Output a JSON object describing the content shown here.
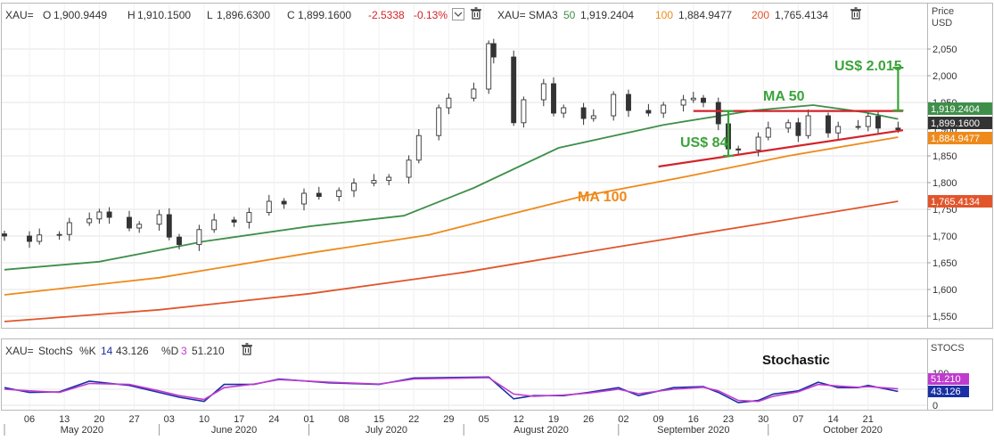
{
  "price_header": {
    "symbol": "XAU=",
    "open_label": "O",
    "open": "1,900.9449",
    "high_label": "H",
    "high": "1,910.1500",
    "low_label": "L",
    "low": "1,896.6300",
    "close_label": "C",
    "close": "1,899.1600",
    "change": "-2.5338",
    "change_pct": "-0.13%",
    "sma_symbol": "XAU=",
    "sma_name": "SMA3",
    "sma1_period": "50",
    "sma1_value": "1,919.2404",
    "sma2_period": "100",
    "sma2_value": "1,884.9477",
    "sma3_period": "200",
    "sma3_value": "1,765.4134"
  },
  "stoch_header": {
    "symbol": "XAU=",
    "name": "StochS",
    "k_label": "%K",
    "k_period": "14",
    "k_value": "43.126",
    "d_label": "%D",
    "d_period": "3",
    "d_value": "51.210"
  },
  "price_axis": {
    "title_line1": "Price",
    "title_line2": "USD",
    "ticks": [
      "2,050",
      "2,000",
      "1,950",
      "1,900",
      "1,850",
      "1,800",
      "1,750",
      "1,700",
      "1,650",
      "1,600",
      "1,550"
    ]
  },
  "stoch_axis": {
    "title": "STOCS",
    "ticks": [
      "100",
      "50",
      "0"
    ]
  },
  "badges": {
    "sma50": "1,919.2404",
    "close": "1,899.1600",
    "sma100": "1,884.9477",
    "sma200": "1,765.4134"
  },
  "annotations": {
    "ma50": "MA 50",
    "ma100": "MA 100",
    "target_high": "US$ 2.015",
    "target_low": "US$ 84",
    "stochastic": "Stochastic"
  },
  "x_axis": {
    "days": [
      "06",
      "13",
      "20",
      "27",
      "03",
      "10",
      "17",
      "24",
      "01",
      "08",
      "15",
      "22",
      "29",
      "05",
      "12",
      "19",
      "26",
      "02",
      "09",
      "16",
      "23",
      "30",
      "07",
      "14",
      "21"
    ],
    "months": [
      "May 2020",
      "June 2020",
      "July 2020",
      "August 2020",
      "September 2020",
      "October 2020"
    ]
  },
  "colors": {
    "up_candle": "#ffffff",
    "down_candle": "#333333",
    "sma50": "#3f8f4a",
    "sma100": "#ee8a1b",
    "sma200": "#e1552b",
    "stoch_k": "#1a2fa3",
    "stoch_d": "#c03ad0",
    "annotation_green": "#3aa33a",
    "annotation_orange": "#ee8a1b",
    "trend_red": "#d2232a"
  },
  "chart_data": [
    {
      "type": "candlestick",
      "title": "",
      "ylabel": "Price USD",
      "ylim": [
        1530,
        2080
      ],
      "x_range": [
        "2020-05-01",
        "2020-10-28"
      ],
      "series": [
        {
          "name": "XAU=",
          "kind": "close",
          "points": [
            [
              "2020-05-01",
              1700
            ],
            [
              "2020-05-06",
              1690
            ],
            [
              "2020-05-08",
              1702
            ],
            [
              "2020-05-12",
              1703
            ],
            [
              "2020-05-14",
              1725
            ],
            [
              "2020-05-18",
              1732
            ],
            [
              "2020-05-20",
              1745
            ],
            [
              "2020-05-22",
              1735
            ],
            [
              "2020-05-26",
              1715
            ],
            [
              "2020-05-28",
              1722
            ],
            [
              "2020-06-01",
              1740
            ],
            [
              "2020-06-03",
              1698
            ],
            [
              "2020-06-05",
              1684
            ],
            [
              "2020-06-09",
              1712
            ],
            [
              "2020-06-12",
              1730
            ],
            [
              "2020-06-16",
              1726
            ],
            [
              "2020-06-19",
              1744
            ],
            [
              "2020-06-23",
              1765
            ],
            [
              "2020-06-26",
              1760
            ],
            [
              "2020-06-30",
              1780
            ],
            [
              "2020-07-03",
              1774
            ],
            [
              "2020-07-07",
              1785
            ],
            [
              "2020-07-10",
              1799
            ],
            [
              "2020-07-14",
              1804
            ],
            [
              "2020-07-17",
              1810
            ],
            [
              "2020-07-21",
              1842
            ],
            [
              "2020-07-23",
              1888
            ],
            [
              "2020-07-27",
              1940
            ],
            [
              "2020-07-29",
              1958
            ],
            [
              "2020-08-03",
              1975
            ],
            [
              "2020-08-06",
              2060
            ],
            [
              "2020-08-07",
              2035
            ],
            [
              "2020-08-11",
              1912
            ],
            [
              "2020-08-13",
              1955
            ],
            [
              "2020-08-17",
              1985
            ],
            [
              "2020-08-19",
              1930
            ],
            [
              "2020-08-21",
              1940
            ],
            [
              "2020-08-25",
              1920
            ],
            [
              "2020-08-27",
              1925
            ],
            [
              "2020-08-31",
              1965
            ],
            [
              "2020-09-03",
              1935
            ],
            [
              "2020-09-07",
              1930
            ],
            [
              "2020-09-10",
              1945
            ],
            [
              "2020-09-14",
              1955
            ],
            [
              "2020-09-16",
              1958
            ],
            [
              "2020-09-18",
              1950
            ],
            [
              "2020-09-21",
              1910
            ],
            [
              "2020-09-23",
              1863
            ],
            [
              "2020-09-25",
              1861
            ],
            [
              "2020-09-29",
              1885
            ],
            [
              "2020-10-01",
              1902
            ],
            [
              "2020-10-05",
              1912
            ],
            [
              "2020-10-07",
              1888
            ],
            [
              "2020-10-09",
              1925
            ],
            [
              "2020-10-13",
              1893
            ],
            [
              "2020-10-15",
              1905
            ],
            [
              "2020-10-19",
              1905
            ],
            [
              "2020-10-21",
              1924
            ],
            [
              "2020-10-23",
              1902
            ],
            [
              "2020-10-27",
              1899
            ]
          ]
        },
        {
          "name": "SMA 50",
          "points": [
            [
              "2020-05-01",
              1637
            ],
            [
              "2020-05-20",
              1652
            ],
            [
              "2020-06-10",
              1690
            ],
            [
              "2020-07-01",
              1718
            ],
            [
              "2020-07-20",
              1738
            ],
            [
              "2020-08-03",
              1790
            ],
            [
              "2020-08-20",
              1865
            ],
            [
              "2020-09-10",
              1908
            ],
            [
              "2020-09-28",
              1935
            ],
            [
              "2020-10-10",
              1945
            ],
            [
              "2020-10-20",
              1932
            ],
            [
              "2020-10-27",
              1919
            ]
          ]
        },
        {
          "name": "SMA 100",
          "points": [
            [
              "2020-05-01",
              1590
            ],
            [
              "2020-06-01",
              1622
            ],
            [
              "2020-07-01",
              1668
            ],
            [
              "2020-07-25",
              1702
            ],
            [
              "2020-08-10",
              1740
            ],
            [
              "2020-08-25",
              1775
            ],
            [
              "2020-09-15",
              1812
            ],
            [
              "2020-10-05",
              1850
            ],
            [
              "2020-10-27",
              1885
            ]
          ]
        },
        {
          "name": "SMA 200",
          "points": [
            [
              "2020-05-01",
              1540
            ],
            [
              "2020-06-01",
              1562
            ],
            [
              "2020-07-01",
              1592
            ],
            [
              "2020-08-01",
              1632
            ],
            [
              "2020-09-01",
              1680
            ],
            [
              "2020-10-01",
              1725
            ],
            [
              "2020-10-27",
              1765
            ]
          ]
        }
      ],
      "annotations": [
        {
          "text": "MA 50",
          "ref": "SMA 50"
        },
        {
          "text": "MA 100",
          "ref": "SMA 100"
        },
        {
          "text": "US$ 2.015",
          "kind": "range",
          "from": 1935,
          "to": 2015
        },
        {
          "text": "US$ 84",
          "kind": "range",
          "from": 1850,
          "to": 1934
        }
      ],
      "lines": [
        {
          "kind": "resistance",
          "y": 1934,
          "from": "2020-09-16",
          "to": "2020-10-28"
        },
        {
          "kind": "support",
          "from": [
            "2020-09-09",
            1830
          ],
          "to": [
            "2020-10-28",
            1898
          ]
        }
      ],
      "grid": true
    },
    {
      "type": "line",
      "title": "",
      "ylabel": "STOCS",
      "ylim": [
        0,
        100
      ],
      "series": [
        {
          "name": "%K",
          "points": [
            [
              "2020-05-01",
              55
            ],
            [
              "2020-05-06",
              40
            ],
            [
              "2020-05-12",
              42
            ],
            [
              "2020-05-18",
              75
            ],
            [
              "2020-05-26",
              62
            ],
            [
              "2020-06-01",
              40
            ],
            [
              "2020-06-05",
              25
            ],
            [
              "2020-06-10",
              12
            ],
            [
              "2020-06-14",
              65
            ],
            [
              "2020-06-20",
              65
            ],
            [
              "2020-06-25",
              82
            ],
            [
              "2020-07-05",
              70
            ],
            [
              "2020-07-15",
              65
            ],
            [
              "2020-07-22",
              85
            ],
            [
              "2020-08-06",
              88
            ],
            [
              "2020-08-11",
              20
            ],
            [
              "2020-08-15",
              30
            ],
            [
              "2020-08-21",
              30
            ],
            [
              "2020-08-26",
              40
            ],
            [
              "2020-09-01",
              55
            ],
            [
              "2020-09-05",
              30
            ],
            [
              "2020-09-12",
              55
            ],
            [
              "2020-09-18",
              58
            ],
            [
              "2020-09-21",
              40
            ],
            [
              "2020-09-25",
              8
            ],
            [
              "2020-09-29",
              15
            ],
            [
              "2020-10-02",
              35
            ],
            [
              "2020-10-07",
              45
            ],
            [
              "2020-10-11",
              72
            ],
            [
              "2020-10-15",
              55
            ],
            [
              "2020-10-19",
              55
            ],
            [
              "2020-10-21",
              62
            ],
            [
              "2020-10-27",
              43
            ]
          ]
        },
        {
          "name": "%D",
          "points": [
            [
              "2020-05-01",
              50
            ],
            [
              "2020-05-06",
              45
            ],
            [
              "2020-05-12",
              40
            ],
            [
              "2020-05-18",
              68
            ],
            [
              "2020-05-26",
              65
            ],
            [
              "2020-06-01",
              45
            ],
            [
              "2020-06-05",
              30
            ],
            [
              "2020-06-10",
              18
            ],
            [
              "2020-06-14",
              55
            ],
            [
              "2020-06-20",
              66
            ],
            [
              "2020-06-25",
              80
            ],
            [
              "2020-07-05",
              72
            ],
            [
              "2020-07-15",
              66
            ],
            [
              "2020-07-22",
              82
            ],
            [
              "2020-08-06",
              86
            ],
            [
              "2020-08-11",
              35
            ],
            [
              "2020-08-15",
              28
            ],
            [
              "2020-08-21",
              32
            ],
            [
              "2020-08-26",
              38
            ],
            [
              "2020-09-01",
              50
            ],
            [
              "2020-09-05",
              36
            ],
            [
              "2020-09-12",
              50
            ],
            [
              "2020-09-18",
              56
            ],
            [
              "2020-09-21",
              45
            ],
            [
              "2020-09-25",
              15
            ],
            [
              "2020-09-29",
              12
            ],
            [
              "2020-10-02",
              28
            ],
            [
              "2020-10-07",
              42
            ],
            [
              "2020-10-11",
              65
            ],
            [
              "2020-10-15",
              60
            ],
            [
              "2020-10-19",
              56
            ],
            [
              "2020-10-21",
              58
            ],
            [
              "2020-10-27",
              51
            ]
          ]
        }
      ],
      "grid": true
    }
  ]
}
